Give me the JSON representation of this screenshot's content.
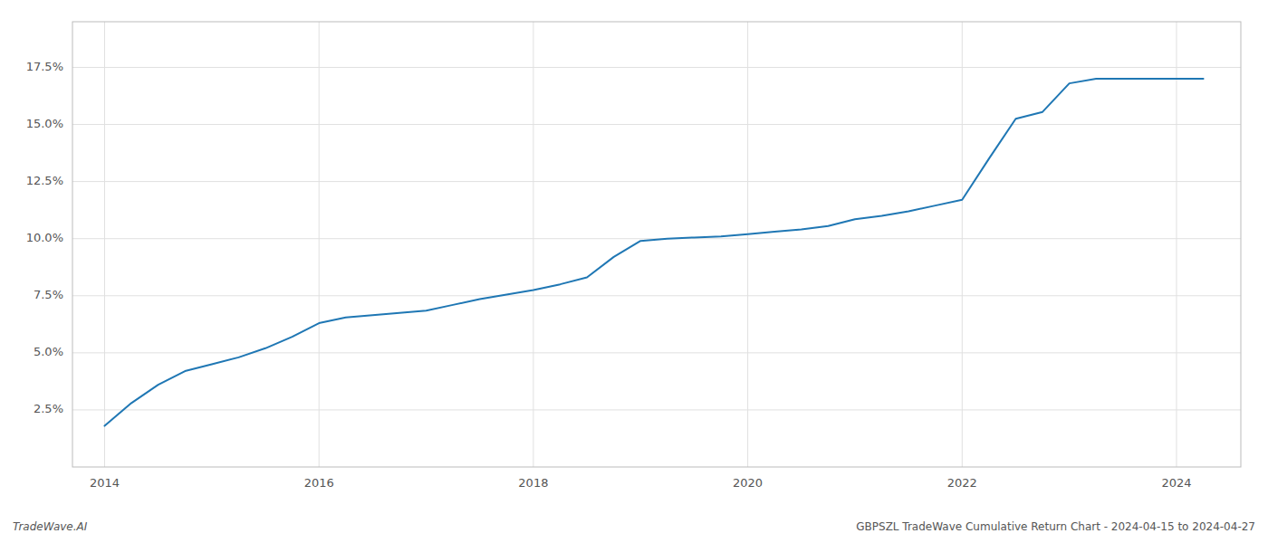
{
  "chart_data": {
    "type": "line",
    "title": "GBPSZL TradeWave Cumulative Return Chart - 2024-04-15 to 2024-04-27",
    "annotations": [
      "TradeWave.AI"
    ],
    "color": "#1f77b4",
    "grid": true,
    "x": [
      2014.0,
      2014.25,
      2014.5,
      2014.75,
      2015.0,
      2015.25,
      2015.5,
      2015.75,
      2016.0,
      2016.25,
      2016.5,
      2016.75,
      2017.0,
      2017.25,
      2017.5,
      2017.75,
      2018.0,
      2018.25,
      2018.5,
      2018.75,
      2019.0,
      2019.25,
      2019.5,
      2019.75,
      2020.0,
      2020.25,
      2020.5,
      2020.75,
      2021.0,
      2021.25,
      2021.5,
      2021.75,
      2022.0,
      2022.25,
      2022.5,
      2022.75,
      2023.0,
      2023.25,
      2023.5,
      2023.75,
      2024.0,
      2024.25
    ],
    "values": [
      1.8,
      2.8,
      3.6,
      4.2,
      4.5,
      4.8,
      5.2,
      5.7,
      6.3,
      6.55,
      6.65,
      6.75,
      6.85,
      7.1,
      7.35,
      7.55,
      7.75,
      8.0,
      8.3,
      9.2,
      9.9,
      10.0,
      10.05,
      10.1,
      10.2,
      10.3,
      10.4,
      10.55,
      10.85,
      11.0,
      11.2,
      11.45,
      11.7,
      13.5,
      15.25,
      15.55,
      16.8,
      17.0,
      17.0,
      17.0,
      17.0,
      17.0
    ],
    "xlim": [
      2013.7,
      2024.6
    ],
    "ylim": [
      0.0,
      19.5
    ],
    "xticks": [
      2014,
      2016,
      2018,
      2020,
      2022,
      2024
    ],
    "yticks": [
      {
        "value": 2.5,
        "label": "2.5%"
      },
      {
        "value": 5.0,
        "label": "5.0%"
      },
      {
        "value": 7.5,
        "label": "7.5%"
      },
      {
        "value": 10.0,
        "label": "10.0%"
      },
      {
        "value": 12.5,
        "label": "12.5%"
      },
      {
        "value": 15.0,
        "label": "15.0%"
      },
      {
        "value": 17.5,
        "label": "17.5%"
      }
    ]
  }
}
